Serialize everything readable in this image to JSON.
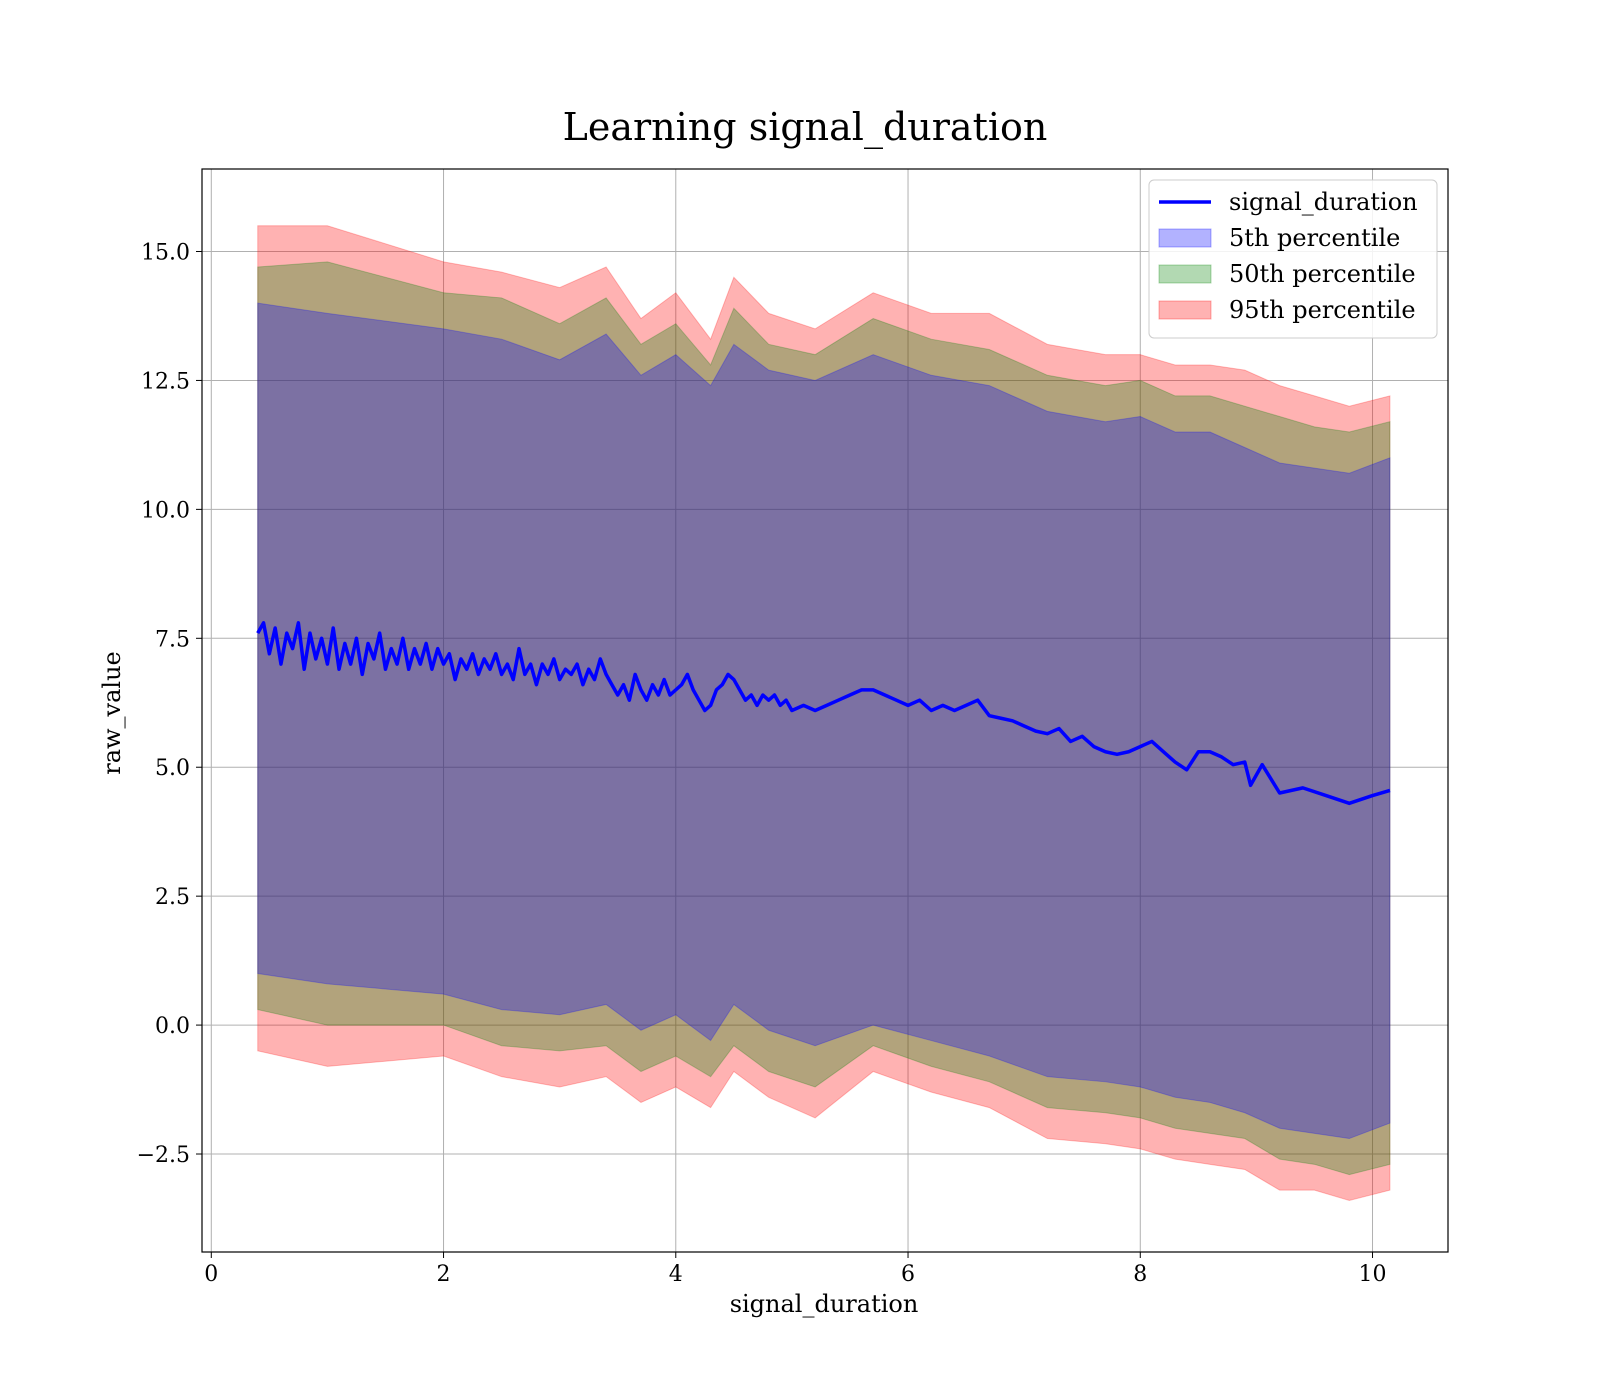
{
  "chart_data": {
    "type": "area",
    "title": "Learning signal_duration",
    "xlabel": "signal_duration",
    "ylabel": "raw_value",
    "xlim": [
      -0.08,
      10.65
    ],
    "ylim": [
      -4.4,
      16.6
    ],
    "xticks": [
      0,
      2,
      4,
      6,
      8,
      10
    ],
    "xtick_labels": [
      "0",
      "2",
      "4",
      "6",
      "8",
      "10"
    ],
    "yticks": [
      -2.5,
      0.0,
      2.5,
      5.0,
      7.5,
      10.0,
      12.5,
      15.0
    ],
    "ytick_labels": [
      "−2.5",
      "0.0",
      "2.5",
      "5.0",
      "7.5",
      "10.0",
      "12.5",
      "15.0"
    ],
    "grid": true,
    "legend_position": "top-right",
    "line_series": {
      "name": "signal_duration",
      "color": "#0000ff",
      "x": [
        0.4,
        0.45,
        0.5,
        0.55,
        0.6,
        0.65,
        0.7,
        0.75,
        0.8,
        0.85,
        0.9,
        0.95,
        1.0,
        1.05,
        1.1,
        1.15,
        1.2,
        1.25,
        1.3,
        1.35,
        1.4,
        1.45,
        1.5,
        1.55,
        1.6,
        1.65,
        1.7,
        1.75,
        1.8,
        1.85,
        1.9,
        1.95,
        2.0,
        2.05,
        2.1,
        2.15,
        2.2,
        2.25,
        2.3,
        2.35,
        2.4,
        2.45,
        2.5,
        2.55,
        2.6,
        2.65,
        2.7,
        2.75,
        2.8,
        2.85,
        2.9,
        2.95,
        3.0,
        3.05,
        3.1,
        3.15,
        3.2,
        3.25,
        3.3,
        3.35,
        3.4,
        3.45,
        3.5,
        3.55,
        3.6,
        3.65,
        3.7,
        3.75,
        3.8,
        3.85,
        3.9,
        3.95,
        4.0,
        4.05,
        4.1,
        4.15,
        4.2,
        4.25,
        4.3,
        4.35,
        4.4,
        4.45,
        4.5,
        4.55,
        4.6,
        4.65,
        4.7,
        4.75,
        4.8,
        4.85,
        4.9,
        4.95,
        5.0,
        5.1,
        5.2,
        5.3,
        5.4,
        5.5,
        5.6,
        5.7,
        5.8,
        5.9,
        6.0,
        6.1,
        6.2,
        6.3,
        6.4,
        6.5,
        6.6,
        6.7,
        6.8,
        6.9,
        7.0,
        7.1,
        7.2,
        7.3,
        7.4,
        7.5,
        7.6,
        7.7,
        7.8,
        7.9,
        8.0,
        8.1,
        8.2,
        8.3,
        8.4,
        8.5,
        8.6,
        8.7,
        8.8,
        8.9,
        8.95,
        9.05,
        9.2,
        9.4,
        9.6,
        9.8,
        10.0,
        10.15
      ],
      "y": [
        7.6,
        7.8,
        7.2,
        7.7,
        7.0,
        7.6,
        7.3,
        7.8,
        6.9,
        7.6,
        7.1,
        7.5,
        7.0,
        7.7,
        6.9,
        7.4,
        7.0,
        7.5,
        6.8,
        7.4,
        7.1,
        7.6,
        6.9,
        7.3,
        7.0,
        7.5,
        6.9,
        7.3,
        7.0,
        7.4,
        6.9,
        7.3,
        7.0,
        7.2,
        6.7,
        7.1,
        6.9,
        7.2,
        6.8,
        7.1,
        6.9,
        7.2,
        6.8,
        7.0,
        6.7,
        7.3,
        6.8,
        7.0,
        6.6,
        7.0,
        6.8,
        7.1,
        6.7,
        6.9,
        6.8,
        7.0,
        6.6,
        6.9,
        6.7,
        7.1,
        6.8,
        6.6,
        6.4,
        6.6,
        6.3,
        6.8,
        6.5,
        6.3,
        6.6,
        6.4,
        6.7,
        6.4,
        6.5,
        6.6,
        6.8,
        6.5,
        6.3,
        6.1,
        6.2,
        6.5,
        6.6,
        6.8,
        6.7,
        6.5,
        6.3,
        6.4,
        6.2,
        6.4,
        6.3,
        6.4,
        6.2,
        6.3,
        6.1,
        6.2,
        6.1,
        6.2,
        6.3,
        6.4,
        6.5,
        6.5,
        6.4,
        6.3,
        6.2,
        6.3,
        6.1,
        6.2,
        6.1,
        6.2,
        6.3,
        6.0,
        5.95,
        5.9,
        5.8,
        5.7,
        5.65,
        5.75,
        5.5,
        5.6,
        5.4,
        5.3,
        5.25,
        5.3,
        5.4,
        5.5,
        5.3,
        5.1,
        4.95,
        5.3,
        5.3,
        5.2,
        5.05,
        5.1,
        4.65,
        5.05,
        4.5,
        4.6,
        4.45,
        4.3,
        4.45,
        4.55
      ]
    },
    "bands": [
      {
        "name": "95th percentile",
        "color": "#ff0000",
        "opacity": 0.3,
        "x": [
          0.4,
          1.0,
          2.0,
          2.5,
          3.0,
          3.4,
          3.7,
          4.0,
          4.3,
          4.5,
          4.8,
          5.2,
          5.7,
          6.2,
          6.7,
          7.2,
          7.7,
          8.0,
          8.3,
          8.6,
          8.9,
          9.2,
          9.5,
          9.8,
          10.15
        ],
        "upper": [
          15.5,
          15.5,
          14.8,
          14.6,
          14.3,
          14.7,
          13.7,
          14.2,
          13.3,
          14.5,
          13.8,
          13.5,
          14.2,
          13.8,
          13.8,
          13.2,
          13.0,
          13.0,
          12.8,
          12.8,
          12.7,
          12.4,
          12.2,
          12.0,
          12.2
        ],
        "lower": [
          -0.5,
          -0.8,
          -0.6,
          -1.0,
          -1.2,
          -1.0,
          -1.5,
          -1.2,
          -1.6,
          -0.9,
          -1.4,
          -1.8,
          -0.9,
          -1.3,
          -1.6,
          -2.2,
          -2.3,
          -2.4,
          -2.6,
          -2.7,
          -2.8,
          -3.2,
          -3.2,
          -3.4,
          -3.2
        ]
      },
      {
        "name": "50th percentile",
        "color": "#008000",
        "opacity": 0.3,
        "x": [
          0.4,
          1.0,
          2.0,
          2.5,
          3.0,
          3.4,
          3.7,
          4.0,
          4.3,
          4.5,
          4.8,
          5.2,
          5.7,
          6.2,
          6.7,
          7.2,
          7.7,
          8.0,
          8.3,
          8.6,
          8.9,
          9.2,
          9.5,
          9.8,
          10.15
        ],
        "upper": [
          14.7,
          14.8,
          14.2,
          14.1,
          13.6,
          14.1,
          13.2,
          13.6,
          12.8,
          13.9,
          13.2,
          13.0,
          13.7,
          13.3,
          13.1,
          12.6,
          12.4,
          12.5,
          12.2,
          12.2,
          12.0,
          11.8,
          11.6,
          11.5,
          11.7
        ],
        "lower": [
          0.3,
          0.0,
          0.0,
          -0.4,
          -0.5,
          -0.4,
          -0.9,
          -0.6,
          -1.0,
          -0.4,
          -0.9,
          -1.2,
          -0.4,
          -0.8,
          -1.1,
          -1.6,
          -1.7,
          -1.8,
          -2.0,
          -2.1,
          -2.2,
          -2.6,
          -2.7,
          -2.9,
          -2.7
        ]
      },
      {
        "name": "5th percentile",
        "color": "#0000ff",
        "opacity": 0.3,
        "x": [
          0.4,
          1.0,
          2.0,
          2.5,
          3.0,
          3.4,
          3.7,
          4.0,
          4.3,
          4.5,
          4.8,
          5.2,
          5.7,
          6.2,
          6.7,
          7.2,
          7.7,
          8.0,
          8.3,
          8.6,
          8.9,
          9.2,
          9.5,
          9.8,
          10.15
        ],
        "upper": [
          14.0,
          13.8,
          13.5,
          13.3,
          12.9,
          13.4,
          12.6,
          13.0,
          12.4,
          13.2,
          12.7,
          12.5,
          13.0,
          12.6,
          12.4,
          11.9,
          11.7,
          11.8,
          11.5,
          11.5,
          11.2,
          10.9,
          10.8,
          10.7,
          11.0
        ],
        "lower": [
          1.0,
          0.8,
          0.6,
          0.3,
          0.2,
          0.4,
          -0.1,
          0.2,
          -0.3,
          0.4,
          -0.1,
          -0.4,
          0.0,
          -0.3,
          -0.6,
          -1.0,
          -1.1,
          -1.2,
          -1.4,
          -1.5,
          -1.7,
          -2.0,
          -2.1,
          -2.2,
          -1.9
        ]
      }
    ],
    "legend": [
      {
        "label": "signal_duration",
        "kind": "line",
        "color": "#0000ff"
      },
      {
        "label": "5th percentile",
        "kind": "patch",
        "color": "#0000ff"
      },
      {
        "label": "50th percentile",
        "kind": "patch",
        "color": "#008000"
      },
      {
        "label": "95th percentile",
        "kind": "patch",
        "color": "#ff0000"
      }
    ]
  }
}
